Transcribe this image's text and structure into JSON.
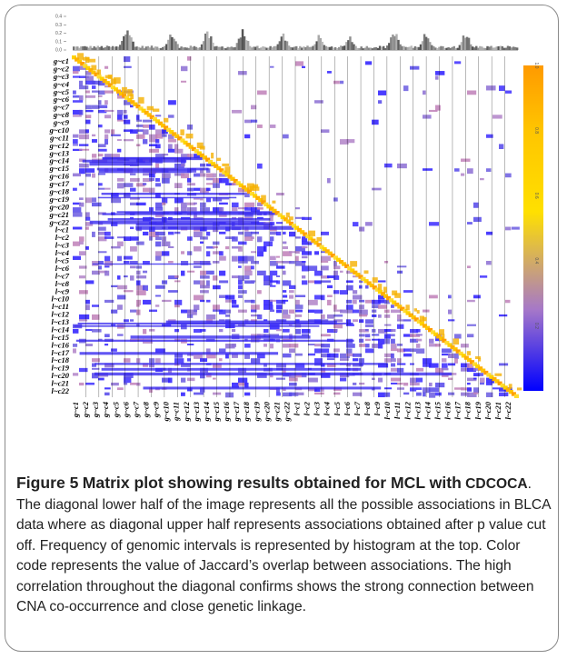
{
  "figure": {
    "label": "Figure 5",
    "title": "Matrix plot showing results obtained for MCL with",
    "method": "CDCOCA",
    "caption_text": ". The diagonal lower half of the image represents all the possible associations in BLCA data where as diagonal upper half represents associations obtained after p value cut off. Frequency of genomic intervals is represented by histogram at the top. Color code represents the value of Jaccard’s overlap between associations. The high correlation throughout the diagonal confirms shows the strong connection between CNA co-occurrence and close genetic linkage."
  },
  "chart_data": {
    "type": "heatmap",
    "row_labels": [
      "g~c1",
      "g~c2",
      "g~c3",
      "g~c4",
      "g~c5",
      "g~c6",
      "g~c7",
      "g~c8",
      "g~c9",
      "g~c10",
      "g~c11",
      "g~c12",
      "g~c13",
      "g~c14",
      "g~c15",
      "g~c16",
      "g~c17",
      "g~c18",
      "g~c19",
      "g~c20",
      "g~c21",
      "g~c22",
      "l~c1",
      "l~c2",
      "l~c3",
      "l~c4",
      "l~c5",
      "l~c6",
      "l~c7",
      "l~c8",
      "l~c9",
      "l~c10",
      "l~c11",
      "l~c12",
      "l~c13",
      "l~c14",
      "l~c15",
      "l~c16",
      "l~c17",
      "l~c18",
      "l~c19",
      "l~c20",
      "l~c21",
      "l~c22"
    ],
    "col_labels": [
      "g~c1",
      "g~c2",
      "g~c3",
      "g~c4",
      "g~c5",
      "g~c6",
      "g~c7",
      "g~c8",
      "g~c9",
      "g~c10",
      "g~c11",
      "g~c12",
      "g~c13",
      "g~c14",
      "g~c15",
      "g~c16",
      "g~c17",
      "g~c18",
      "g~c19",
      "g~c20",
      "g~c21",
      "g~c22",
      "l~c1",
      "l~c2",
      "l~c3",
      "l~c4",
      "l~c5",
      "l~c6",
      "l~c7",
      "l~c8",
      "l~c9",
      "l~c10",
      "l~c11",
      "l~c12",
      "l~c13",
      "l~c14",
      "l~c15",
      "l~c16",
      "l~c17",
      "l~c18",
      "l~c19",
      "l~c20",
      "l~c21",
      "l~c22"
    ],
    "colorbar": {
      "min": 0,
      "max": 1.0,
      "ticks": [
        "0.2",
        "0.4",
        "0.6",
        "0.8",
        "1.0"
      ],
      "colors": [
        "#0000ff",
        "#a678c8",
        "#ffe000",
        "#ffc500",
        "#ff9a00"
      ]
    },
    "histogram": {
      "ylim": [
        0,
        0.4
      ],
      "ticks": [
        "0.0",
        "0.1",
        "0.2",
        "0.3",
        "0.4"
      ]
    }
  }
}
